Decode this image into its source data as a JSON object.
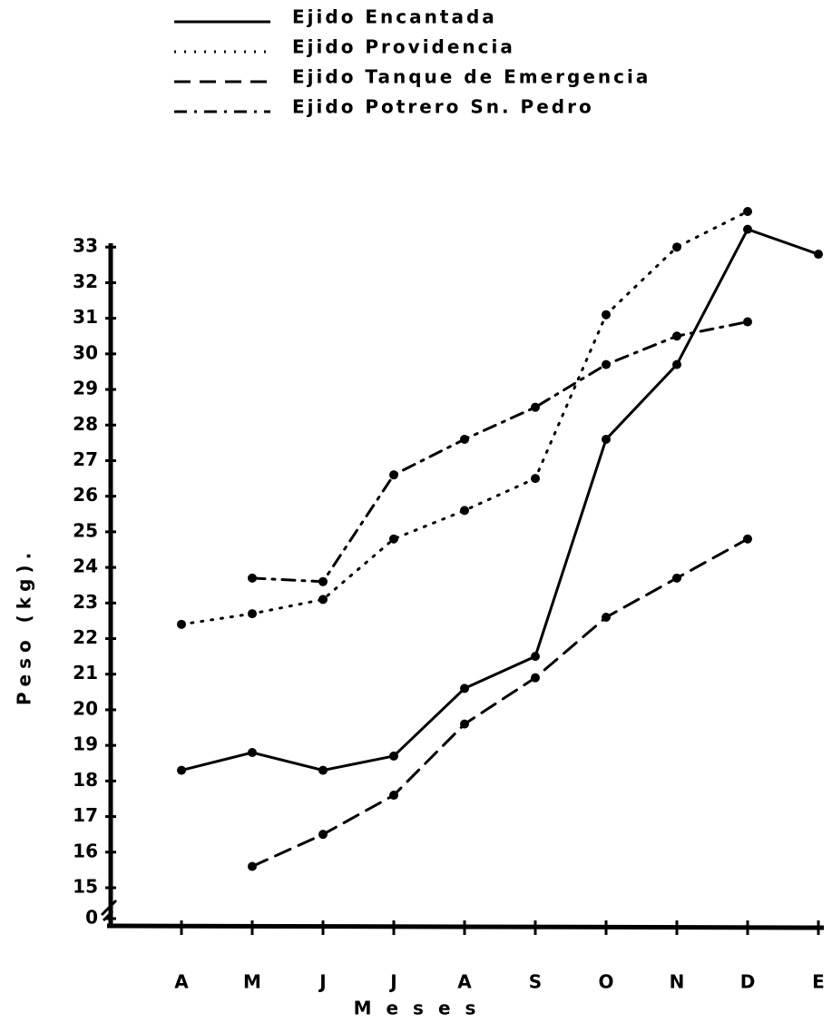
{
  "chart_data": {
    "type": "line",
    "y_label": "Peso (kg).",
    "x_label": "Meses",
    "categories": [
      "A",
      "M",
      "J",
      "J",
      "A",
      "S",
      "O",
      "N",
      "D",
      "E"
    ],
    "series": [
      {
        "name": "Ejido Encantada",
        "color": "#000000",
        "dash": "solid",
        "values": [
          18.3,
          18.8,
          18.3,
          18.7,
          20.6,
          21.5,
          27.6,
          29.7,
          33.5,
          32.8
        ]
      },
      {
        "name": "Ejido Providencia",
        "color": "#000000",
        "dash": "dotted",
        "values": [
          22.4,
          22.7,
          23.1,
          24.8,
          25.6,
          26.5,
          31.1,
          33.0,
          34.0,
          null
        ]
      },
      {
        "name": "Ejido Tanque de Emergencia",
        "color": "#000000",
        "dash": "dashed",
        "values": [
          null,
          15.6,
          16.5,
          17.6,
          19.6,
          20.9,
          22.6,
          23.7,
          24.8,
          null
        ]
      },
      {
        "name": "Ejido Potrero Sn. Pedro",
        "color": "#000000",
        "dash": "dashdot",
        "values": [
          null,
          23.7,
          23.6,
          26.6,
          27.6,
          28.5,
          29.7,
          30.5,
          30.9,
          null
        ]
      }
    ],
    "ylim": [
      15,
      34
    ],
    "yticks": [
      0,
      15,
      16,
      17,
      18,
      19,
      20,
      21,
      22,
      23,
      24,
      25,
      26,
      27,
      28,
      29,
      30,
      31,
      32,
      33
    ],
    "axis_break": true,
    "grid": false
  }
}
